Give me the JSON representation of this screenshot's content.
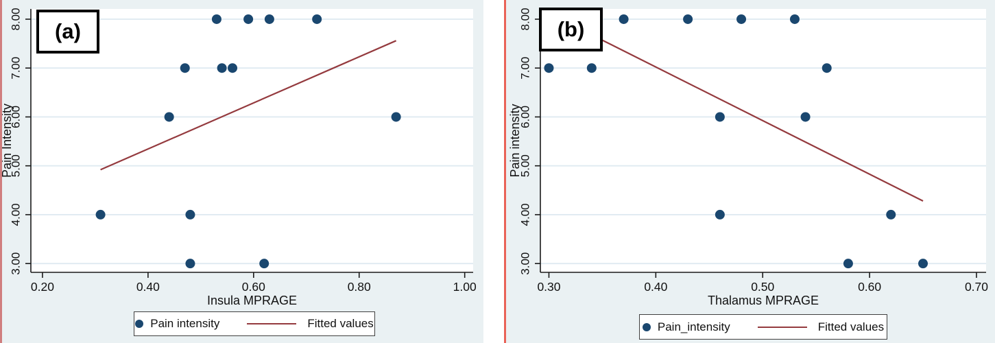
{
  "figure": {
    "panel_bg_color": "#eaf1f3",
    "plot_bg_color": "#ffffff",
    "gridline_color": "#dfeaf1",
    "axis_color": "#1a1a1a",
    "text_color": "#111111",
    "accent_navy": "#1a476f",
    "accent_maroon": "#943a3e",
    "edge_border_color": "#d07e7e",
    "divider_color": "#e96257"
  },
  "panels": [
    {
      "tag": "(a)"
    },
    {
      "tag": "(b)"
    }
  ],
  "chart_data": [
    {
      "type": "scatter",
      "panel_tag": "(a)",
      "title": "",
      "xlabel": "Insula MPRAGE",
      "ylabel": "Pain Intensity",
      "xlim": [
        0.178,
        1.016
      ],
      "ylim": [
        2.82,
        8.21
      ],
      "xticks": [
        0.2,
        0.4,
        0.6,
        0.8,
        1.0
      ],
      "xtick_labels": [
        "0.20",
        "0.40",
        "0.60",
        "0.80",
        "1.00"
      ],
      "yticks": [
        3,
        4,
        5,
        6,
        7,
        8
      ],
      "ytick_labels": [
        "3.00",
        "4.00",
        "5.00",
        "6.00",
        "7.00",
        "8.00"
      ],
      "grid": "horizontal",
      "legend_position": "bottom",
      "legend": {
        "entries": [
          {
            "marker": "dot",
            "label": "Pain intensity"
          },
          {
            "marker": "line",
            "label": "Fitted values"
          }
        ]
      },
      "points": [
        [
          0.53,
          8
        ],
        [
          0.59,
          8
        ],
        [
          0.63,
          8
        ],
        [
          0.72,
          8
        ],
        [
          0.47,
          7
        ],
        [
          0.54,
          7
        ],
        [
          0.56,
          7
        ],
        [
          0.44,
          6
        ],
        [
          0.87,
          6
        ],
        [
          0.31,
          4
        ],
        [
          0.48,
          4
        ],
        [
          0.48,
          3
        ],
        [
          0.62,
          3
        ]
      ],
      "fit_line": {
        "x1": 0.31,
        "y1": 4.92,
        "x2": 0.87,
        "y2": 7.56
      }
    },
    {
      "type": "scatter",
      "panel_tag": "(b)",
      "title": "",
      "xlabel": "Thalamus MPRAGE",
      "ylabel": "Pain intensity",
      "xlim": [
        0.292,
        0.709
      ],
      "ylim": [
        2.82,
        8.21
      ],
      "xticks": [
        0.3,
        0.4,
        0.5,
        0.6,
        0.7
      ],
      "xtick_labels": [
        "0.30",
        "0.40",
        "0.50",
        "0.60",
        "0.70"
      ],
      "yticks": [
        3,
        4,
        5,
        6,
        7,
        8
      ],
      "ytick_labels": [
        "3.00",
        "4.00",
        "5.00",
        "6.00",
        "7.00",
        "8.00"
      ],
      "grid": "horizontal",
      "legend_position": "bottom",
      "legend": {
        "entries": [
          {
            "marker": "dot",
            "label": "Pain_intensity"
          },
          {
            "marker": "line",
            "label": "Fitted values"
          }
        ]
      },
      "points": [
        [
          0.37,
          8
        ],
        [
          0.43,
          8
        ],
        [
          0.48,
          8
        ],
        [
          0.53,
          8
        ],
        [
          0.3,
          7
        ],
        [
          0.34,
          7
        ],
        [
          0.56,
          7
        ],
        [
          0.46,
          6
        ],
        [
          0.54,
          6
        ],
        [
          0.46,
          4
        ],
        [
          0.62,
          4
        ],
        [
          0.58,
          3
        ],
        [
          0.65,
          3
        ]
      ],
      "fit_line": {
        "x1": 0.35,
        "y1": 7.57,
        "x2": 0.65,
        "y2": 4.28
      }
    }
  ]
}
